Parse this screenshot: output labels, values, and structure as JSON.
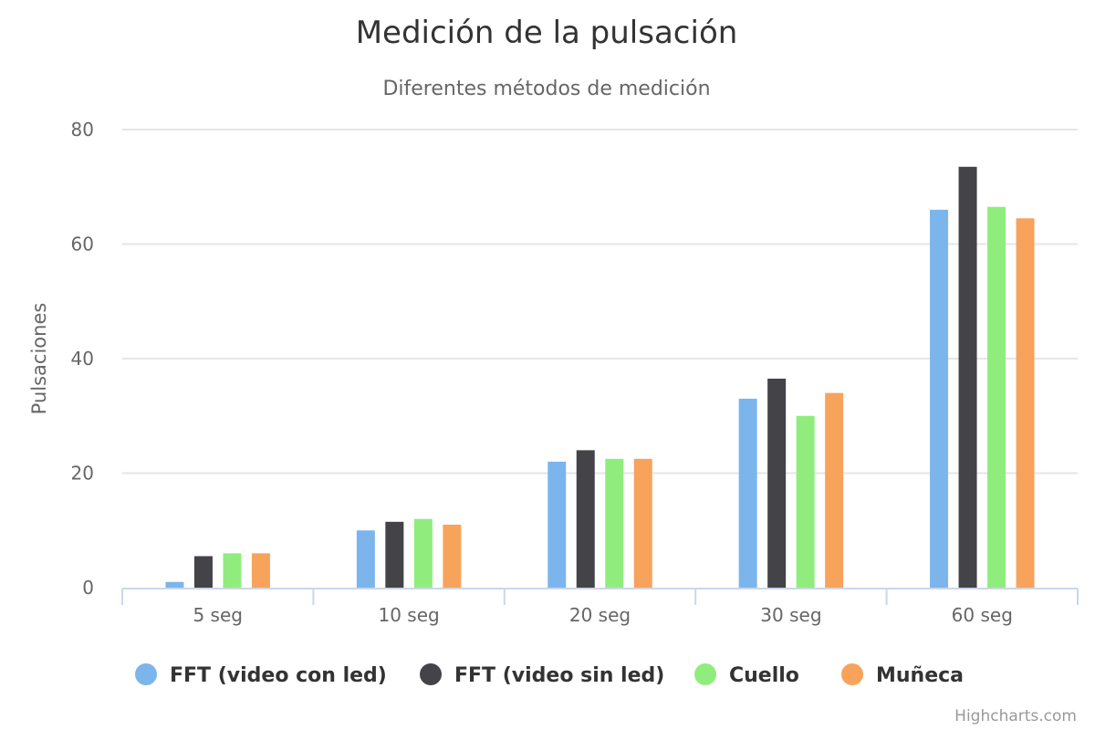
{
  "chart_data": {
    "type": "bar",
    "title": "Medición de la pulsación",
    "subtitle": "Diferentes métodos de medición",
    "xlabel": "",
    "ylabel": "Pulsaciones",
    "ylim": [
      0,
      80
    ],
    "yticks": [
      0,
      20,
      40,
      60,
      80
    ],
    "grid": true,
    "legend_position": "bottom-center",
    "categories": [
      "5 seg",
      "10 seg",
      "20 seg",
      "30 seg",
      "60 seg"
    ],
    "series": [
      {
        "name": "FFT (video con led)",
        "color": "#7cb5ec",
        "values": [
          1,
          10,
          22,
          33,
          66
        ]
      },
      {
        "name": "FFT (video sin led)",
        "color": "#434348",
        "values": [
          5.5,
          11.5,
          24,
          36.5,
          73.5
        ]
      },
      {
        "name": "Cuello",
        "color": "#90ed7d",
        "values": [
          6,
          12,
          22.5,
          30,
          66.5
        ]
      },
      {
        "name": "Muñeca",
        "color": "#f7a35c",
        "values": [
          6,
          11,
          22.5,
          34,
          64.5
        ]
      }
    ],
    "credits": "Highcharts.com"
  }
}
